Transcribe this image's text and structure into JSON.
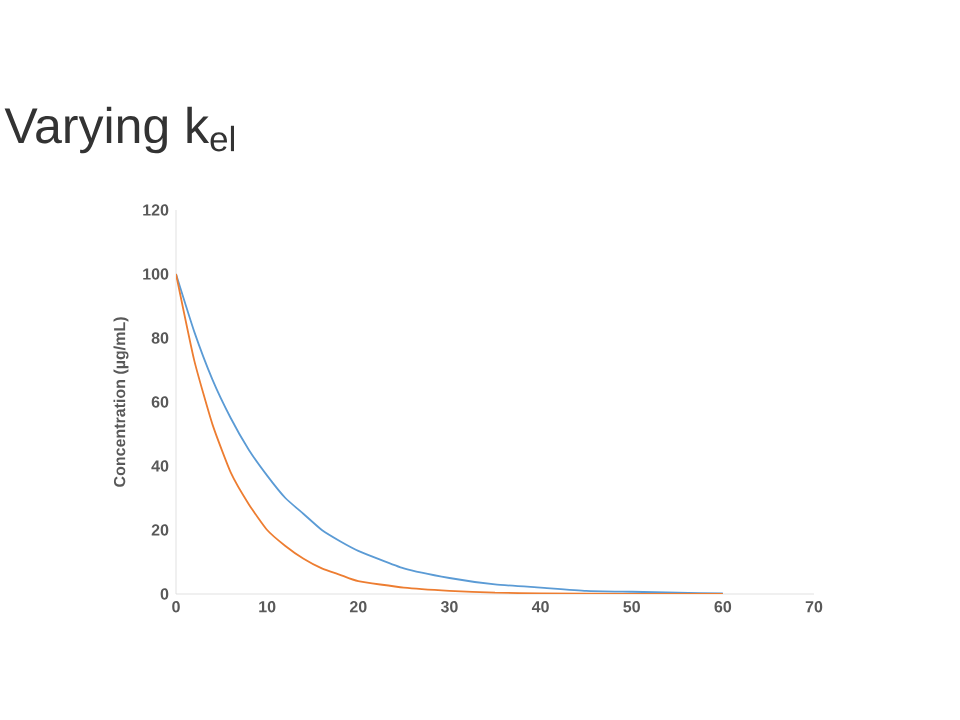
{
  "chart_data": {
    "type": "line",
    "title": "Varying k$_{el}$",
    "ylabel": "Concentration (µg/mL)",
    "xlim": [
      0,
      70
    ],
    "xticks": [
      0,
      10,
      20,
      30,
      40,
      50,
      60,
      70
    ],
    "ylim": [
      0,
      120
    ],
    "yticks": [
      0,
      20,
      40,
      60,
      80,
      100,
      120
    ],
    "grid": false,
    "marker": "none",
    "line_style": "solid",
    "series": [
      {
        "color": "#5b9bd5",
        "x": [
          0,
          2,
          4,
          6,
          8,
          10,
          12,
          14,
          16,
          18,
          20,
          25,
          30,
          35,
          40,
          45,
          50,
          55,
          60
        ],
        "values": [
          100,
          82,
          67,
          55,
          45,
          37,
          30,
          25,
          20,
          16.5,
          13.5,
          8,
          5,
          3,
          2,
          1,
          0.7,
          0.4,
          0.2
        ]
      },
      {
        "color": "#ed7d31",
        "x": [
          0,
          2,
          4,
          6,
          8,
          10,
          12,
          14,
          16,
          18,
          20,
          25,
          30,
          35,
          40,
          50,
          60
        ],
        "values": [
          100,
          73,
          53,
          38,
          28,
          20,
          15,
          11,
          8,
          6,
          4,
          2,
          1,
          0.4,
          0.2,
          0,
          0
        ]
      }
    ]
  }
}
